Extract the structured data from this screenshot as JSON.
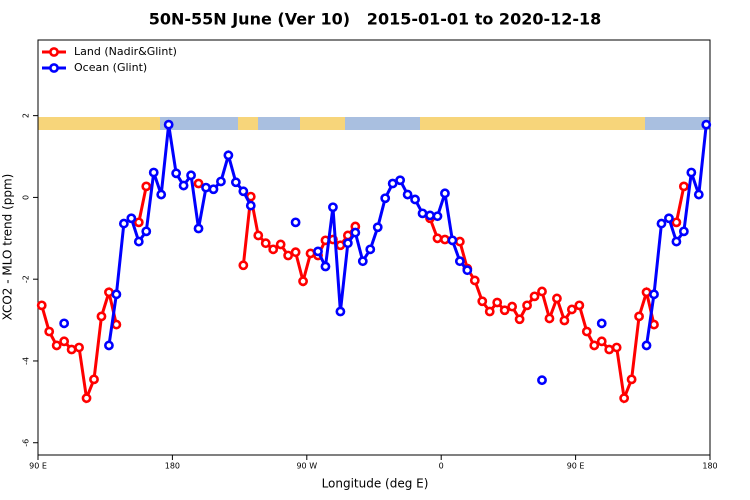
{
  "chart_data": {
    "type": "line",
    "title": "50N-55N June (Ver 10)   2015-01-01 to 2020-12-18",
    "xlabel": "Longitude (deg E)",
    "ylabel": "XCO2 - MLO trend (ppm)",
    "legend": "top-left",
    "xlim": [
      90,
      540
    ],
    "ylim": [
      -6.3,
      3.85
    ],
    "xticks": [
      {
        "value": 90,
        "label": "90 E"
      },
      {
        "value": 180,
        "label": "180"
      },
      {
        "value": 270,
        "label": "90 W"
      },
      {
        "value": 360,
        "label": "0"
      },
      {
        "value": 450,
        "label": "90 E"
      },
      {
        "value": 540,
        "label": "180"
      }
    ],
    "yticks": [
      -6,
      -4,
      -2,
      0,
      2
    ],
    "x": [
      92.5,
      97.5,
      102.5,
      107.5,
      112.5,
      117.5,
      122.5,
      127.5,
      132.5,
      137.5,
      142.5,
      147.5,
      152.5,
      157.5,
      162.5,
      167.5,
      172.5,
      177.5,
      182.5,
      187.5,
      192.5,
      197.5,
      202.5,
      207.5,
      212.5,
      217.5,
      222.5,
      227.5,
      232.5,
      237.5,
      242.5,
      247.5,
      252.5,
      257.5,
      262.5,
      267.5,
      272.5,
      277.5,
      282.5,
      287.5,
      292.5,
      297.5,
      302.5,
      307.5,
      312.5,
      317.5,
      322.5,
      327.5,
      332.5,
      337.5,
      342.5,
      347.5,
      352.5,
      357.5,
      362.5,
      367.5,
      372.5,
      377.5,
      382.5,
      387.5,
      392.5,
      397.5,
      402.5,
      407.5,
      412.5,
      417.5,
      422.5,
      427.5,
      432.5,
      437.5,
      442.5,
      447.5,
      452.5,
      457.5,
      462.5,
      467.5,
      472.5,
      477.5,
      482.5,
      487.5,
      492.5,
      497.5,
      502.5,
      507.5,
      512.5,
      517.5,
      522.5,
      527.5,
      532.5,
      537.5
    ],
    "series": [
      {
        "name": "Land (Nadir&Glint)",
        "color": "#ff0000",
        "values": [
          -2.64,
          -3.28,
          -3.62,
          -3.52,
          -3.72,
          -3.67,
          -4.91,
          -4.45,
          -2.91,
          -2.32,
          -3.11,
          null,
          null,
          -0.61,
          0.27,
          null,
          null,
          null,
          null,
          null,
          null,
          0.34,
          null,
          null,
          null,
          null,
          null,
          -1.66,
          0.02,
          -0.93,
          -1.12,
          -1.27,
          -1.15,
          -1.42,
          -1.34,
          -2.05,
          -1.37,
          -1.42,
          -1.05,
          -1.03,
          -1.17,
          -0.93,
          -0.71,
          null,
          null,
          null,
          null,
          null,
          null,
          null,
          null,
          null,
          -0.51,
          -1.0,
          -1.03,
          -1.05,
          -1.08,
          -1.74,
          -2.03,
          -2.54,
          -2.79,
          -2.57,
          -2.76,
          -2.67,
          -2.98,
          -2.64,
          -2.42,
          -2.3,
          -2.96,
          -2.47,
          -3.01,
          -2.74,
          -2.64,
          -3.28,
          -3.62,
          -3.52,
          -3.72,
          -3.67,
          -4.91,
          -4.45,
          -2.91,
          -2.32,
          -3.11,
          null,
          null,
          -0.61,
          0.27,
          null,
          null,
          null
        ]
      },
      {
        "name": "Ocean (Glint)",
        "color": "#0000ff",
        "values": [
          null,
          null,
          null,
          -3.08,
          null,
          null,
          null,
          null,
          null,
          -3.62,
          -2.37,
          -0.64,
          -0.51,
          -1.08,
          -0.83,
          0.61,
          0.07,
          1.78,
          0.59,
          0.29,
          0.54,
          -0.76,
          0.24,
          0.2,
          0.39,
          1.03,
          0.37,
          0.15,
          -0.2,
          null,
          null,
          null,
          null,
          null,
          -0.61,
          null,
          null,
          -1.32,
          -1.69,
          -0.24,
          -2.79,
          -1.12,
          -0.86,
          -1.56,
          -1.27,
          -0.73,
          -0.02,
          0.34,
          0.42,
          0.07,
          -0.05,
          -0.39,
          -0.44,
          -0.46,
          0.1,
          -1.05,
          -1.56,
          -1.78,
          null,
          null,
          null,
          null,
          null,
          null,
          null,
          null,
          null,
          -4.47,
          null,
          null,
          null,
          null,
          null,
          null,
          null,
          -3.08,
          null,
          null,
          null,
          null,
          null,
          -3.62,
          -2.37,
          -0.64,
          -0.51,
          -1.08,
          -0.83,
          0.61,
          0.07,
          1.78
        ]
      }
    ]
  }
}
